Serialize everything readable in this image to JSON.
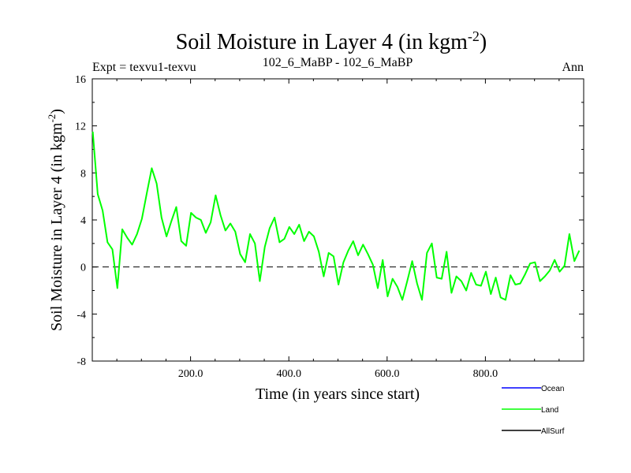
{
  "chart_data": {
    "type": "line",
    "title": "Soil Moisture in Layer 4 (in kgm",
    "title_sup": "-2",
    "title_close": ")",
    "subtitle_left": "Expt = texvu1-texvu",
    "subtitle_center": "102_6_MaBP - 102_6_MaBP",
    "subtitle_right": "Ann",
    "xlabel": "Time (in years since start)",
    "ylabel": "Soil Moisture in Layer 4 (in kgm",
    "ylabel_sup": "-2",
    "ylabel_close": ")",
    "xlim": [
      0,
      1000
    ],
    "ylim": [
      -8,
      16
    ],
    "x_ticks": [
      200,
      400,
      600,
      800
    ],
    "x_tick_labels": [
      "200.0",
      "400.0",
      "600.0",
      "800.0"
    ],
    "y_ticks": [
      -8,
      -4,
      0,
      4,
      8,
      12,
      16
    ],
    "y_tick_labels": [
      "-8",
      "-4",
      "0",
      "4",
      "8",
      "12",
      "16"
    ],
    "reference_line": 0,
    "series": [
      {
        "name": "Ocean",
        "color": "#0000ff",
        "values": []
      },
      {
        "name": "Land",
        "color": "#00ff00",
        "x_start": 1,
        "x_step": 10,
        "values": [
          11.5,
          6.2,
          4.8,
          2.1,
          1.5,
          -1.8,
          3.2,
          2.5,
          1.9,
          2.8,
          4.1,
          6.3,
          8.4,
          7.1,
          4.2,
          2.6,
          3.9,
          5.1,
          2.2,
          1.8,
          4.6,
          4.2,
          4.0,
          2.9,
          3.8,
          6.1,
          4.4,
          3.1,
          3.7,
          3.0,
          1.1,
          0.4,
          2.8,
          2.0,
          -1.2,
          1.7,
          3.3,
          4.2,
          2.1,
          2.4,
          3.4,
          2.8,
          3.6,
          2.2,
          3.0,
          2.6,
          1.3,
          -0.8,
          1.2,
          0.9,
          -1.5,
          0.4,
          1.4,
          2.2,
          1.0,
          1.9,
          1.1,
          0.2,
          -1.8,
          0.6,
          -2.5,
          -1.0,
          -1.7,
          -2.8,
          -1.2,
          0.5,
          -1.4,
          -2.8,
          1.2,
          2.0,
          -0.9,
          -1.0,
          1.3,
          -2.2,
          -0.8,
          -1.2,
          -2.0,
          -0.5,
          -1.5,
          -1.6,
          -0.4,
          -2.3,
          -0.9,
          -2.6,
          -2.8,
          -0.7,
          -1.5,
          -1.4,
          -0.6,
          0.3,
          0.4,
          -1.2,
          -0.8,
          -0.3,
          0.6,
          -0.4,
          0.1,
          2.8,
          0.5,
          1.4
        ]
      },
      {
        "name": "AllSurf",
        "color": "#000000",
        "values": []
      }
    ]
  }
}
